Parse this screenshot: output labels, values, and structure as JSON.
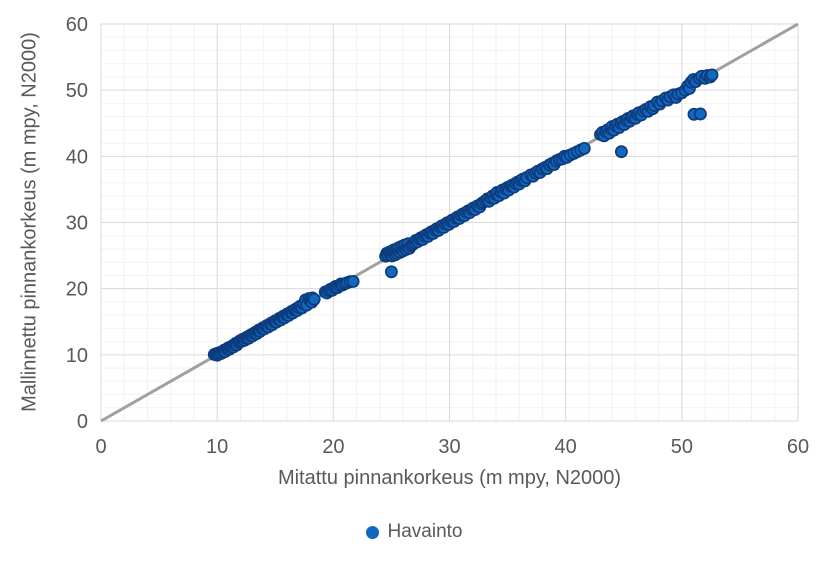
{
  "colors": {
    "background": "#ffffff",
    "grid_major": "#d9d9d9",
    "grid_minor": "#f2f2f2",
    "plot_border": "#d9d9d9",
    "text": "#595959",
    "marker_fill": "#1267be",
    "marker_stroke": "#0d3c7e",
    "reference_line": "#a0a0a0"
  },
  "chart_data": {
    "type": "scatter",
    "title": "",
    "xlabel": "Mitattu pinnankorkeus (m mpy, N2000)",
    "ylabel": "Mallinnettu pinnankorkeus (m mpy, N2000)",
    "xlim": [
      0,
      60
    ],
    "ylim": [
      0,
      60
    ],
    "x_ticks": [
      0,
      10,
      20,
      30,
      40,
      50,
      60
    ],
    "y_ticks": [
      0,
      10,
      20,
      30,
      40,
      50,
      60
    ],
    "minor_grid_step": 2,
    "grid": true,
    "legend_position": "bottom-center",
    "reference_line": {
      "from": [
        0,
        0
      ],
      "to": [
        60,
        60
      ],
      "meaning": "1:1 line"
    },
    "series": [
      {
        "name": "Havainto",
        "marker": "circle",
        "points": [
          [
            9.75,
            10.05
          ],
          [
            9.9,
            10.15
          ],
          [
            10.0,
            9.95
          ],
          [
            10.05,
            10.25
          ],
          [
            10.15,
            10.1
          ],
          [
            10.25,
            10.35
          ],
          [
            10.35,
            10.2
          ],
          [
            10.5,
            10.45
          ],
          [
            10.6,
            10.7
          ],
          [
            10.7,
            10.5
          ],
          [
            10.85,
            10.9
          ],
          [
            10.95,
            11.05
          ],
          [
            11.05,
            10.85
          ],
          [
            11.15,
            11.2
          ],
          [
            11.3,
            11.35
          ],
          [
            11.4,
            11.2
          ],
          [
            11.5,
            11.55
          ],
          [
            11.6,
            11.75
          ],
          [
            11.7,
            11.5
          ],
          [
            11.85,
            11.9
          ],
          [
            11.95,
            12.1
          ],
          [
            12.1,
            12.05
          ],
          [
            12.2,
            12.35
          ],
          [
            12.35,
            12.2
          ],
          [
            12.45,
            12.55
          ],
          [
            12.6,
            12.7
          ],
          [
            12.7,
            12.5
          ],
          [
            12.8,
            12.9
          ],
          [
            12.95,
            13.05
          ],
          [
            13.05,
            12.85
          ],
          [
            13.15,
            13.25
          ],
          [
            13.3,
            13.4
          ],
          [
            13.4,
            13.2
          ],
          [
            13.5,
            13.6
          ],
          [
            13.6,
            13.75
          ],
          [
            13.7,
            13.55
          ],
          [
            13.85,
            13.95
          ],
          [
            13.95,
            14.1
          ],
          [
            14.05,
            13.9
          ],
          [
            14.2,
            14.3
          ],
          [
            14.3,
            14.45
          ],
          [
            14.4,
            14.2
          ],
          [
            14.55,
            14.65
          ],
          [
            14.65,
            14.8
          ],
          [
            14.75,
            14.55
          ],
          [
            14.9,
            15.0
          ],
          [
            15.0,
            15.15
          ],
          [
            15.1,
            14.95
          ],
          [
            15.25,
            15.35
          ],
          [
            15.35,
            15.5
          ],
          [
            15.45,
            15.25
          ],
          [
            15.6,
            15.7
          ],
          [
            15.7,
            15.85
          ],
          [
            15.8,
            15.6
          ],
          [
            15.95,
            16.05
          ],
          [
            16.05,
            16.2
          ],
          [
            16.15,
            15.95
          ],
          [
            16.3,
            16.4
          ],
          [
            16.4,
            16.55
          ],
          [
            16.5,
            16.3
          ],
          [
            16.65,
            16.75
          ],
          [
            16.75,
            16.9
          ],
          [
            16.9,
            16.7
          ],
          [
            17.0,
            17.15
          ],
          [
            17.15,
            17.35
          ],
          [
            17.3,
            17.1
          ],
          [
            17.45,
            17.7
          ],
          [
            17.6,
            18.3
          ],
          [
            17.7,
            17.5
          ],
          [
            17.9,
            18.5
          ],
          [
            18.0,
            18.2
          ],
          [
            18.15,
            17.95
          ],
          [
            18.2,
            18.6
          ],
          [
            18.35,
            18.4
          ],
          [
            19.3,
            19.5
          ],
          [
            19.45,
            19.35
          ],
          [
            19.6,
            19.7
          ],
          [
            19.75,
            19.9
          ],
          [
            19.9,
            19.75
          ],
          [
            20.05,
            20.15
          ],
          [
            20.2,
            20.35
          ],
          [
            20.35,
            20.15
          ],
          [
            20.5,
            20.5
          ],
          [
            20.65,
            20.7
          ],
          [
            20.8,
            20.55
          ],
          [
            21.0,
            20.75
          ],
          [
            21.2,
            20.9
          ],
          [
            21.45,
            21.05
          ],
          [
            21.7,
            21.1
          ],
          [
            25.0,
            22.55
          ],
          [
            24.5,
            24.9
          ],
          [
            24.6,
            25.35
          ],
          [
            24.7,
            25.05
          ],
          [
            24.8,
            25.5
          ],
          [
            24.9,
            25.2
          ],
          [
            25.0,
            25.65
          ],
          [
            25.05,
            24.95
          ],
          [
            25.15,
            25.4
          ],
          [
            25.2,
            25.85
          ],
          [
            25.3,
            25.1
          ],
          [
            25.35,
            25.55
          ],
          [
            25.45,
            26.0
          ],
          [
            25.5,
            25.3
          ],
          [
            25.6,
            25.75
          ],
          [
            25.65,
            26.2
          ],
          [
            25.75,
            25.5
          ],
          [
            25.85,
            25.95
          ],
          [
            25.9,
            26.4
          ],
          [
            26.0,
            25.7
          ],
          [
            26.1,
            26.15
          ],
          [
            26.15,
            26.6
          ],
          [
            26.25,
            25.9
          ],
          [
            26.35,
            26.35
          ],
          [
            26.45,
            26.8
          ],
          [
            26.55,
            26.1
          ],
          [
            26.7,
            26.5
          ],
          [
            26.85,
            26.7
          ],
          [
            27.0,
            26.9
          ],
          [
            27.1,
            27.3
          ],
          [
            27.25,
            27.1
          ],
          [
            27.4,
            27.5
          ],
          [
            27.55,
            27.7
          ],
          [
            27.7,
            27.45
          ],
          [
            27.85,
            27.95
          ],
          [
            28.0,
            28.15
          ],
          [
            28.15,
            27.9
          ],
          [
            28.3,
            28.4
          ],
          [
            28.45,
            28.6
          ],
          [
            28.6,
            28.35
          ],
          [
            28.75,
            28.85
          ],
          [
            28.9,
            29.05
          ],
          [
            29.05,
            28.8
          ],
          [
            29.2,
            29.3
          ],
          [
            29.35,
            29.5
          ],
          [
            29.5,
            29.25
          ],
          [
            29.65,
            29.75
          ],
          [
            29.8,
            29.95
          ],
          [
            29.95,
            29.7
          ],
          [
            30.1,
            30.2
          ],
          [
            30.25,
            30.4
          ],
          [
            30.4,
            30.15
          ],
          [
            30.55,
            30.65
          ],
          [
            30.7,
            30.85
          ],
          [
            30.85,
            30.6
          ],
          [
            31.0,
            31.1
          ],
          [
            31.15,
            31.3
          ],
          [
            31.3,
            31.05
          ],
          [
            31.45,
            31.55
          ],
          [
            31.6,
            31.75
          ],
          [
            31.75,
            31.5
          ],
          [
            31.9,
            32.0
          ],
          [
            32.05,
            32.2
          ],
          [
            32.2,
            31.95
          ],
          [
            32.4,
            32.5
          ],
          [
            32.6,
            32.35
          ],
          [
            32.75,
            32.85
          ],
          [
            32.9,
            33.05
          ],
          [
            33.1,
            33.3
          ],
          [
            33.25,
            33.55
          ],
          [
            33.4,
            33.2
          ],
          [
            33.55,
            33.75
          ],
          [
            33.7,
            34.0
          ],
          [
            33.85,
            33.65
          ],
          [
            34.0,
            34.25
          ],
          [
            34.1,
            34.55
          ],
          [
            34.25,
            34.05
          ],
          [
            34.4,
            34.65
          ],
          [
            34.55,
            34.9
          ],
          [
            34.7,
            34.45
          ],
          [
            34.85,
            35.1
          ],
          [
            35.0,
            35.3
          ],
          [
            35.1,
            34.9
          ],
          [
            35.25,
            35.5
          ],
          [
            35.4,
            35.65
          ],
          [
            35.55,
            35.35
          ],
          [
            35.7,
            35.9
          ],
          [
            35.85,
            36.1
          ],
          [
            36.0,
            35.8
          ],
          [
            36.15,
            36.35
          ],
          [
            36.3,
            36.55
          ],
          [
            36.5,
            36.3
          ],
          [
            36.65,
            36.8
          ],
          [
            37.0,
            37.2
          ],
          [
            37.2,
            37.0
          ],
          [
            37.4,
            37.5
          ],
          [
            37.6,
            37.75
          ],
          [
            37.8,
            37.55
          ],
          [
            38.0,
            38.1
          ],
          [
            38.2,
            38.3
          ],
          [
            38.4,
            38.15
          ],
          [
            38.6,
            38.7
          ],
          [
            38.8,
            38.9
          ],
          [
            39.0,
            38.75
          ],
          [
            39.2,
            39.3
          ],
          [
            39.45,
            39.5
          ],
          [
            39.7,
            39.6
          ],
          [
            39.9,
            40.0
          ],
          [
            40.1,
            39.85
          ],
          [
            40.4,
            40.2
          ],
          [
            40.7,
            40.45
          ],
          [
            41.0,
            40.7
          ],
          [
            41.3,
            40.95
          ],
          [
            41.6,
            41.2
          ],
          [
            44.8,
            40.7
          ],
          [
            43.0,
            43.3
          ],
          [
            43.15,
            43.6
          ],
          [
            43.3,
            43.1
          ],
          [
            43.45,
            43.75
          ],
          [
            43.6,
            44.0
          ],
          [
            43.75,
            43.5
          ],
          [
            43.9,
            44.15
          ],
          [
            44.0,
            44.5
          ],
          [
            44.15,
            43.95
          ],
          [
            44.3,
            44.6
          ],
          [
            44.45,
            44.85
          ],
          [
            44.6,
            44.35
          ],
          [
            44.75,
            45.0
          ],
          [
            44.9,
            45.25
          ],
          [
            45.05,
            44.8
          ],
          [
            45.2,
            45.45
          ],
          [
            45.35,
            45.7
          ],
          [
            45.5,
            45.3
          ],
          [
            45.65,
            45.9
          ],
          [
            45.8,
            46.1
          ],
          [
            46.0,
            45.75
          ],
          [
            46.15,
            46.35
          ],
          [
            46.3,
            46.6
          ],
          [
            46.5,
            46.25
          ],
          [
            46.7,
            46.85
          ],
          [
            46.9,
            47.1
          ],
          [
            47.1,
            46.8
          ],
          [
            47.3,
            47.5
          ],
          [
            47.5,
            47.2
          ],
          [
            47.6,
            47.7
          ],
          [
            47.9,
            48.2
          ],
          [
            48.1,
            47.9
          ],
          [
            48.3,
            48.4
          ],
          [
            48.6,
            48.8
          ],
          [
            48.8,
            48.5
          ],
          [
            49.0,
            49.0
          ],
          [
            49.3,
            49.3
          ],
          [
            49.5,
            48.9
          ],
          [
            49.7,
            49.4
          ],
          [
            50.0,
            49.6
          ],
          [
            50.3,
            50.0
          ],
          [
            50.5,
            50.6
          ],
          [
            50.65,
            50.25
          ],
          [
            50.8,
            51.2
          ],
          [
            51.0,
            51.6
          ],
          [
            51.2,
            51.3
          ],
          [
            51.5,
            51.8
          ],
          [
            51.7,
            52.1
          ],
          [
            52.0,
            51.8
          ],
          [
            52.2,
            52.2
          ],
          [
            52.45,
            52.0
          ],
          [
            52.6,
            52.3
          ],
          [
            51.05,
            46.35
          ],
          [
            51.6,
            46.4
          ]
        ]
      }
    ]
  }
}
